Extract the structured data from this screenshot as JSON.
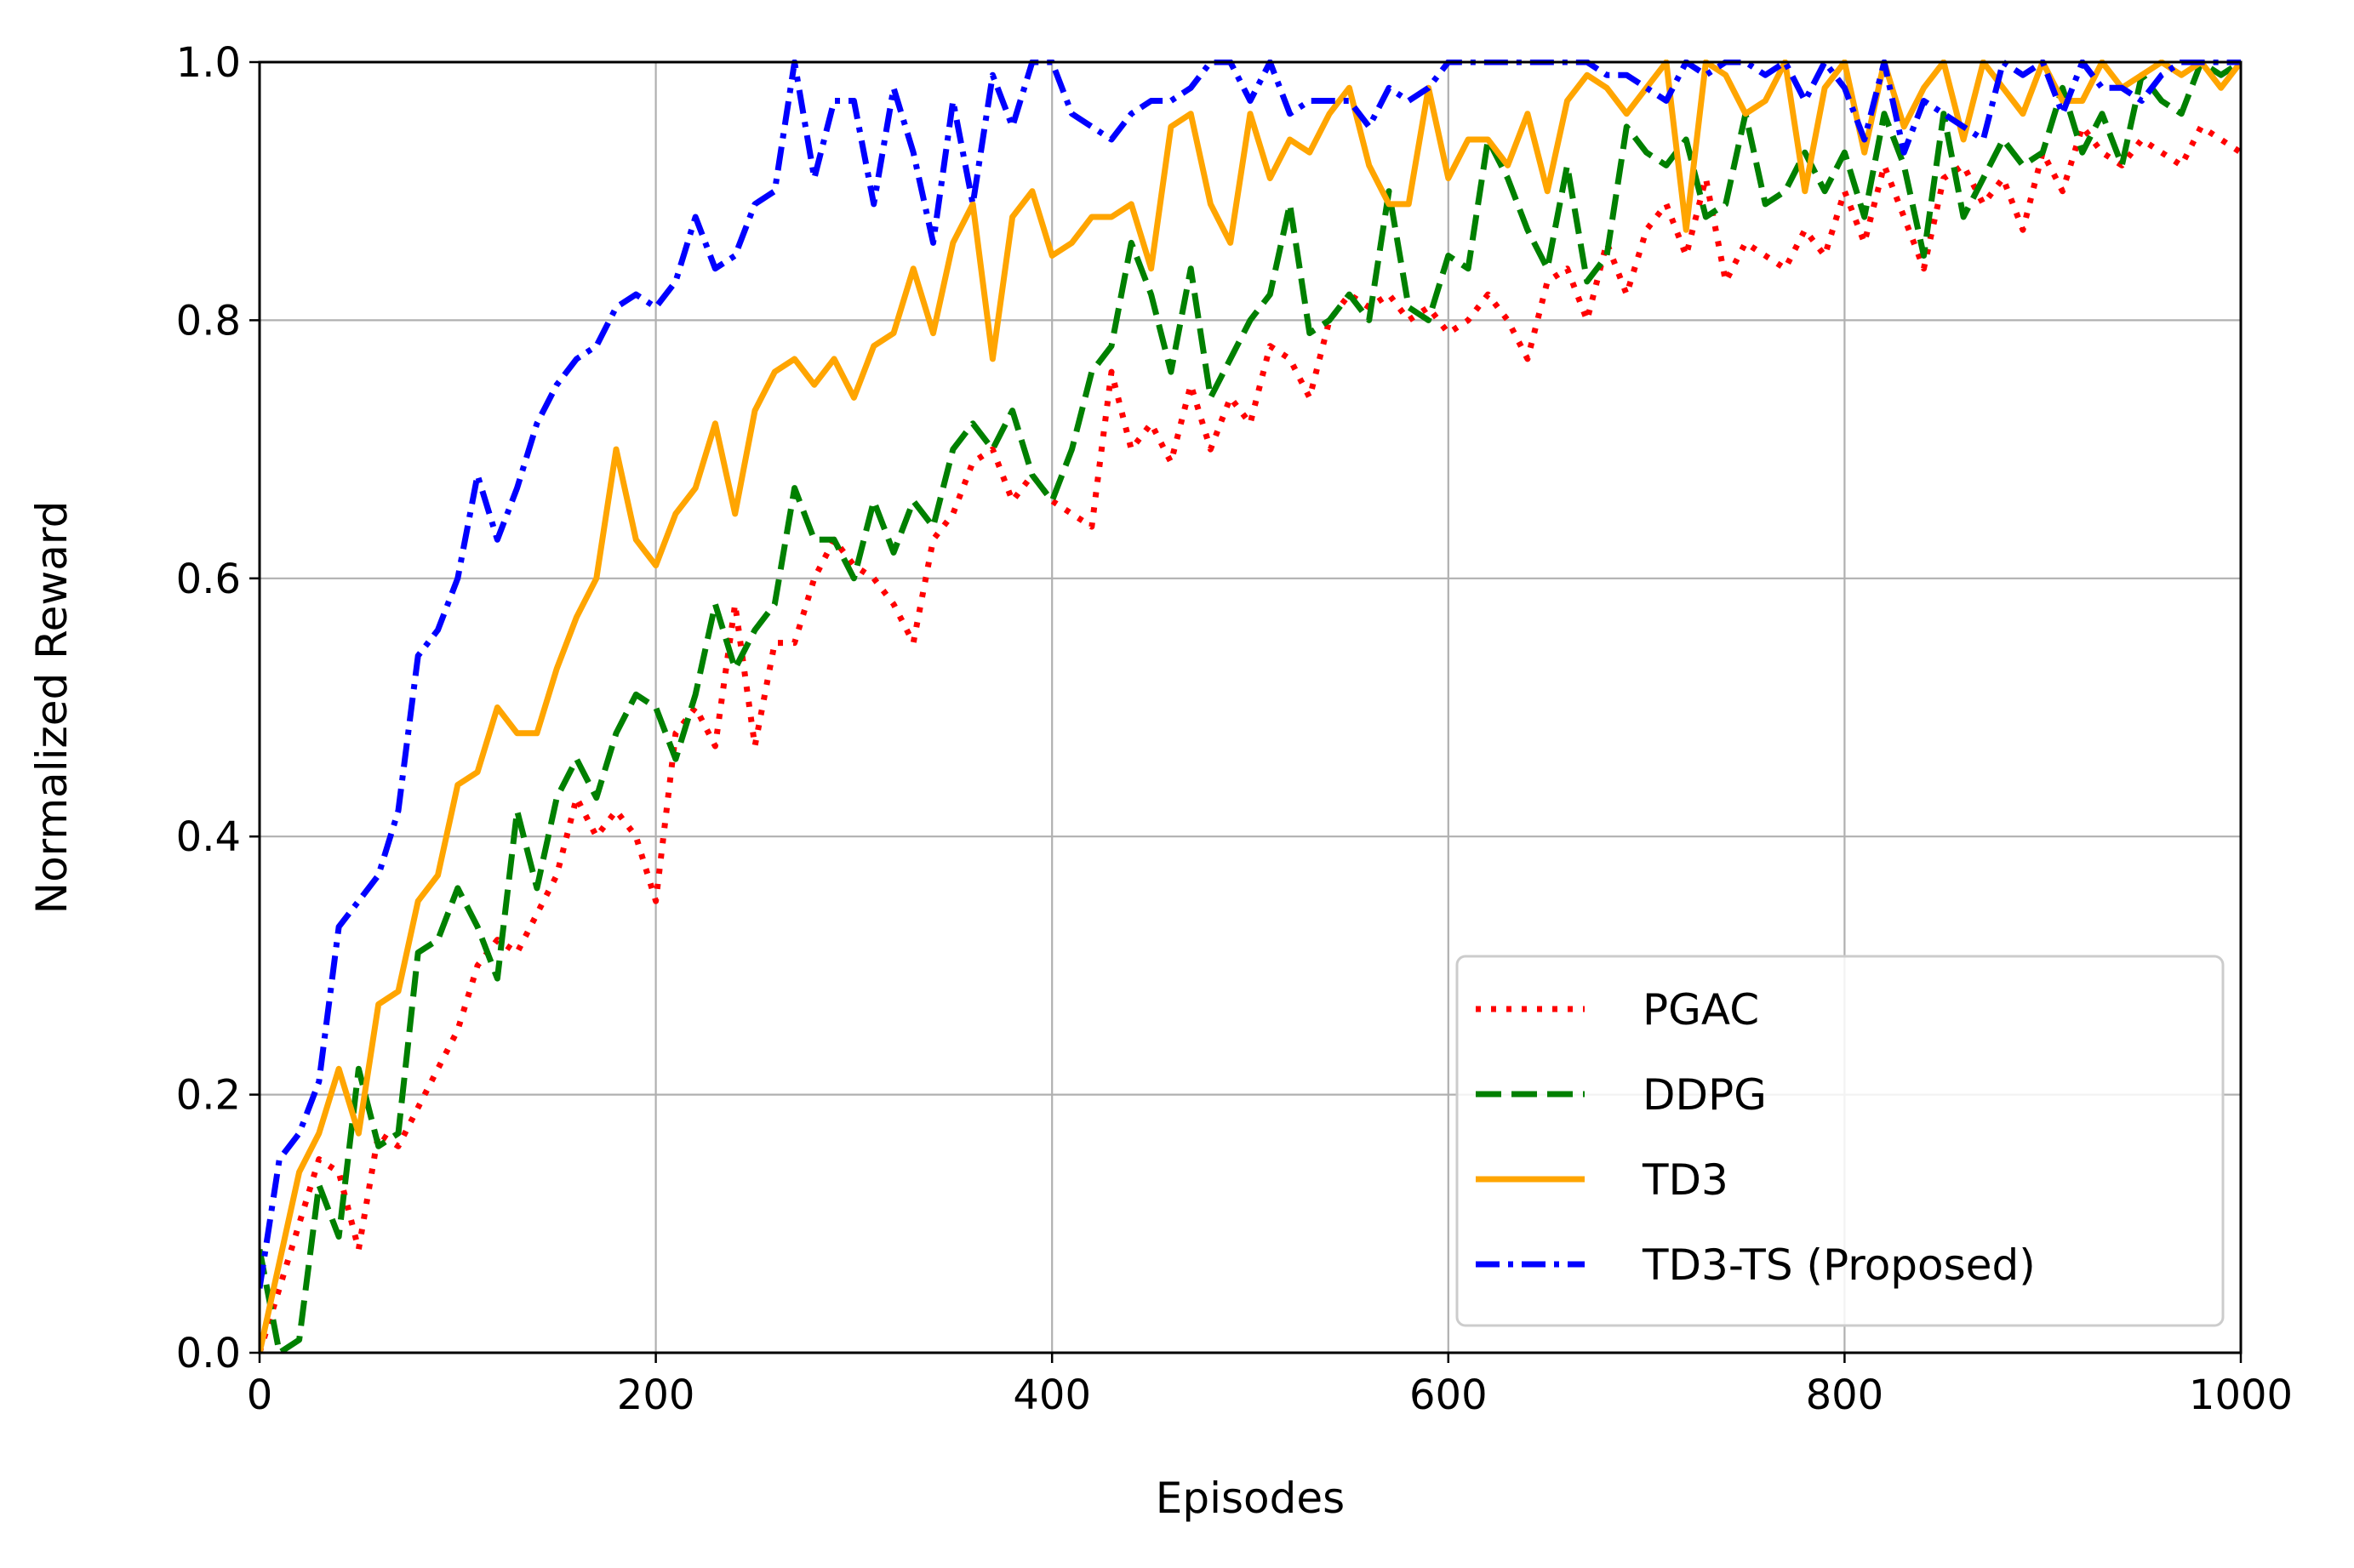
{
  "chart_data": {
    "type": "line",
    "title": "",
    "xlabel": "Episodes",
    "ylabel": "Normalized Reward",
    "xlim": [
      0,
      1000
    ],
    "ylim": [
      0,
      1.0
    ],
    "x_ticks": [
      "0",
      "200",
      "400",
      "600",
      "800",
      "1000"
    ],
    "y_ticks": [
      "0.0",
      "0.2",
      "0.4",
      "0.6",
      "0.8",
      "1.0"
    ],
    "grid": true,
    "legend_position": "lower-right",
    "series": [
      {
        "name": "PGAC",
        "color": "#ff0000",
        "line_style": "dotted",
        "x": [
          0,
          10,
          20,
          30,
          40,
          50,
          60,
          70,
          80,
          90,
          100,
          110,
          120,
          130,
          140,
          150,
          160,
          170,
          180,
          190,
          200,
          210,
          220,
          230,
          240,
          250,
          260,
          270,
          280,
          290,
          300,
          310,
          320,
          330,
          340,
          350,
          360,
          370,
          380,
          390,
          400,
          410,
          420,
          430,
          440,
          450,
          460,
          470,
          480,
          490,
          500,
          510,
          520,
          530,
          540,
          550,
          560,
          570,
          580,
          590,
          600,
          610,
          620,
          630,
          640,
          650,
          660,
          670,
          680,
          690,
          700,
          710,
          720,
          730,
          740,
          750,
          760,
          770,
          780,
          790,
          800,
          810,
          820,
          830,
          840,
          850,
          860,
          870,
          880,
          890,
          900,
          910,
          920,
          930,
          940,
          950,
          960,
          970,
          980,
          990,
          1000
        ],
        "y": [
          0.0,
          0.05,
          0.1,
          0.15,
          0.14,
          0.08,
          0.17,
          0.16,
          0.19,
          0.22,
          0.25,
          0.3,
          0.32,
          0.31,
          0.34,
          0.37,
          0.43,
          0.4,
          0.42,
          0.4,
          0.35,
          0.48,
          0.5,
          0.47,
          0.58,
          0.47,
          0.55,
          0.55,
          0.6,
          0.63,
          0.61,
          0.6,
          0.58,
          0.55,
          0.63,
          0.65,
          0.69,
          0.7,
          0.66,
          0.68,
          0.66,
          0.65,
          0.64,
          0.76,
          0.7,
          0.72,
          0.69,
          0.75,
          0.7,
          0.74,
          0.72,
          0.78,
          0.77,
          0.74,
          0.8,
          0.82,
          0.81,
          0.82,
          0.8,
          0.81,
          0.79,
          0.8,
          0.82,
          0.8,
          0.77,
          0.83,
          0.84,
          0.8,
          0.86,
          0.82,
          0.87,
          0.89,
          0.85,
          0.91,
          0.83,
          0.86,
          0.85,
          0.84,
          0.87,
          0.85,
          0.9,
          0.86,
          0.92,
          0.88,
          0.84,
          0.91,
          0.92,
          0.89,
          0.91,
          0.87,
          0.93,
          0.9,
          0.95,
          0.93,
          0.92,
          0.94,
          0.93,
          0.92,
          0.95,
          0.94,
          0.93
        ]
      },
      {
        "name": "DDPG",
        "color": "#008000",
        "line_style": "dashed",
        "x": [
          0,
          10,
          20,
          30,
          40,
          50,
          60,
          70,
          80,
          90,
          100,
          110,
          120,
          130,
          140,
          150,
          160,
          170,
          180,
          190,
          200,
          210,
          220,
          230,
          240,
          250,
          260,
          270,
          280,
          290,
          300,
          310,
          320,
          330,
          340,
          350,
          360,
          370,
          380,
          390,
          400,
          410,
          420,
          430,
          440,
          450,
          460,
          470,
          480,
          490,
          500,
          510,
          520,
          530,
          540,
          550,
          560,
          570,
          580,
          590,
          600,
          610,
          620,
          630,
          640,
          650,
          660,
          670,
          680,
          690,
          700,
          710,
          720,
          730,
          740,
          750,
          760,
          770,
          780,
          790,
          800,
          810,
          820,
          830,
          840,
          850,
          860,
          870,
          880,
          890,
          900,
          910,
          920,
          930,
          940,
          950,
          960,
          970,
          980,
          990,
          1000
        ],
        "y": [
          0.08,
          0.0,
          0.01,
          0.13,
          0.09,
          0.22,
          0.16,
          0.17,
          0.31,
          0.32,
          0.36,
          0.33,
          0.29,
          0.42,
          0.36,
          0.43,
          0.46,
          0.43,
          0.48,
          0.51,
          0.5,
          0.46,
          0.51,
          0.58,
          0.53,
          0.56,
          0.58,
          0.67,
          0.63,
          0.63,
          0.6,
          0.66,
          0.62,
          0.66,
          0.64,
          0.7,
          0.72,
          0.7,
          0.73,
          0.68,
          0.66,
          0.7,
          0.76,
          0.78,
          0.86,
          0.82,
          0.76,
          0.84,
          0.74,
          0.77,
          0.8,
          0.82,
          0.89,
          0.79,
          0.8,
          0.82,
          0.8,
          0.9,
          0.81,
          0.8,
          0.85,
          0.84,
          0.94,
          0.91,
          0.87,
          0.84,
          0.92,
          0.83,
          0.85,
          0.95,
          0.93,
          0.92,
          0.94,
          0.88,
          0.89,
          0.96,
          0.89,
          0.9,
          0.93,
          0.9,
          0.93,
          0.88,
          0.96,
          0.92,
          0.85,
          0.96,
          0.88,
          0.91,
          0.94,
          0.92,
          0.93,
          0.98,
          0.93,
          0.96,
          0.92,
          0.99,
          0.97,
          0.96,
          1.0,
          0.99,
          1.0
        ]
      },
      {
        "name": "TD3",
        "color": "#ffa500",
        "line_style": "solid",
        "x": [
          0,
          10,
          20,
          30,
          40,
          50,
          60,
          70,
          80,
          90,
          100,
          110,
          120,
          130,
          140,
          150,
          160,
          170,
          180,
          190,
          200,
          210,
          220,
          230,
          240,
          250,
          260,
          270,
          280,
          290,
          300,
          310,
          320,
          330,
          340,
          350,
          360,
          370,
          380,
          390,
          400,
          410,
          420,
          430,
          440,
          450,
          460,
          470,
          480,
          490,
          500,
          510,
          520,
          530,
          540,
          550,
          560,
          570,
          580,
          590,
          600,
          610,
          620,
          630,
          640,
          650,
          660,
          670,
          680,
          690,
          700,
          710,
          720,
          730,
          740,
          750,
          760,
          770,
          780,
          790,
          800,
          810,
          820,
          830,
          840,
          850,
          860,
          870,
          880,
          890,
          900,
          910,
          920,
          930,
          940,
          950,
          960,
          970,
          980,
          990,
          1000
        ],
        "y": [
          0.0,
          0.07,
          0.14,
          0.17,
          0.22,
          0.17,
          0.27,
          0.28,
          0.35,
          0.37,
          0.44,
          0.45,
          0.5,
          0.48,
          0.48,
          0.53,
          0.57,
          0.6,
          0.7,
          0.63,
          0.61,
          0.65,
          0.67,
          0.72,
          0.65,
          0.73,
          0.76,
          0.77,
          0.75,
          0.77,
          0.74,
          0.78,
          0.79,
          0.84,
          0.79,
          0.86,
          0.89,
          0.77,
          0.88,
          0.9,
          0.85,
          0.86,
          0.88,
          0.88,
          0.89,
          0.84,
          0.95,
          0.96,
          0.89,
          0.86,
          0.96,
          0.91,
          0.94,
          0.93,
          0.96,
          0.98,
          0.92,
          0.89,
          0.89,
          0.98,
          0.91,
          0.94,
          0.94,
          0.92,
          0.96,
          0.9,
          0.97,
          0.99,
          0.98,
          0.96,
          0.98,
          1.0,
          0.87,
          1.0,
          0.99,
          0.96,
          0.97,
          1.0,
          0.9,
          0.98,
          1.0,
          0.93,
          1.0,
          0.95,
          0.98,
          1.0,
          0.94,
          1.0,
          0.98,
          0.96,
          1.0,
          0.97,
          0.97,
          1.0,
          0.98,
          0.99,
          1.0,
          0.99,
          1.0,
          0.98,
          1.0
        ]
      },
      {
        "name": "TD3-TS (Proposed)",
        "color": "#0000ff",
        "line_style": "dashdot",
        "x": [
          0,
          10,
          20,
          30,
          40,
          50,
          60,
          70,
          80,
          90,
          100,
          110,
          120,
          130,
          140,
          150,
          160,
          170,
          180,
          190,
          200,
          210,
          220,
          230,
          240,
          250,
          260,
          270,
          280,
          290,
          300,
          310,
          320,
          330,
          340,
          350,
          360,
          370,
          380,
          390,
          400,
          410,
          420,
          430,
          440,
          450,
          460,
          470,
          480,
          490,
          500,
          510,
          520,
          530,
          540,
          550,
          560,
          570,
          580,
          590,
          600,
          610,
          620,
          630,
          640,
          650,
          660,
          670,
          680,
          690,
          700,
          710,
          720,
          730,
          740,
          750,
          760,
          770,
          780,
          790,
          800,
          810,
          820,
          830,
          840,
          850,
          860,
          870,
          880,
          890,
          900,
          910,
          920,
          930,
          940,
          950,
          960,
          970,
          980,
          990,
          1000
        ],
        "y": [
          0.05,
          0.15,
          0.17,
          0.21,
          0.33,
          0.35,
          0.37,
          0.42,
          0.54,
          0.56,
          0.6,
          0.68,
          0.63,
          0.67,
          0.72,
          0.75,
          0.77,
          0.78,
          0.81,
          0.82,
          0.81,
          0.83,
          0.88,
          0.84,
          0.85,
          0.89,
          0.9,
          1.0,
          0.91,
          0.97,
          0.97,
          0.89,
          0.98,
          0.93,
          0.86,
          0.97,
          0.89,
          0.99,
          0.95,
          1.0,
          1.0,
          0.96,
          0.95,
          0.94,
          0.96,
          0.97,
          0.97,
          0.98,
          1.0,
          1.0,
          0.97,
          1.0,
          0.96,
          0.97,
          0.97,
          0.97,
          0.95,
          0.98,
          0.97,
          0.98,
          1.0,
          1.0,
          1.0,
          1.0,
          1.0,
          1.0,
          1.0,
          1.0,
          0.99,
          0.99,
          0.98,
          0.97,
          1.0,
          0.99,
          1.0,
          1.0,
          0.99,
          1.0,
          0.97,
          1.0,
          0.98,
          0.94,
          1.0,
          0.93,
          0.97,
          0.96,
          0.95,
          0.94,
          1.0,
          0.99,
          1.0,
          0.96,
          1.0,
          0.98,
          0.98,
          0.97,
          0.99,
          1.0,
          1.0,
          1.0,
          1.0
        ]
      }
    ]
  }
}
